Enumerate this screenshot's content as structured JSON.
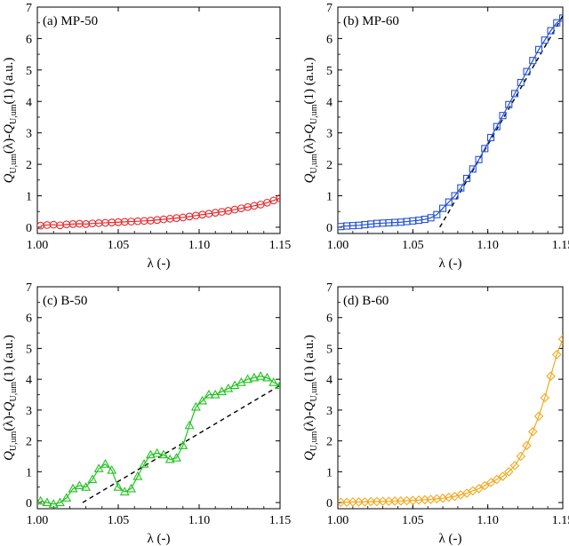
{
  "chart_data": [
    {
      "type": "scatter",
      "panel_label": "(a) MP-50",
      "xlabel": "λ (-)",
      "ylabel": {
        "q1": "Q",
        "s1": "U,um",
        "mid": "(λ)-",
        "q2": "Q",
        "s2": "U,um",
        "end": "(1) (a.u.)"
      },
      "xlim": [
        1.0,
        1.15
      ],
      "ylim": [
        -0.2,
        7
      ],
      "xticks": [
        "1.00",
        "1.05",
        "1.10",
        "1.15"
      ],
      "yticks": [
        "0",
        "1",
        "2",
        "3",
        "4",
        "5",
        "6",
        "7"
      ],
      "marker": "circle",
      "color": "#e8262a",
      "series": [
        {
          "name": "MP-50",
          "x": [
            1.002,
            1.006,
            1.01,
            1.014,
            1.018,
            1.022,
            1.026,
            1.03,
            1.034,
            1.038,
            1.042,
            1.046,
            1.05,
            1.054,
            1.058,
            1.062,
            1.066,
            1.07,
            1.074,
            1.078,
            1.082,
            1.086,
            1.09,
            1.094,
            1.098,
            1.102,
            1.106,
            1.11,
            1.114,
            1.118,
            1.122,
            1.126,
            1.13,
            1.134,
            1.138,
            1.142,
            1.146,
            1.15
          ],
          "y": [
            0.05,
            0.07,
            0.08,
            0.06,
            0.09,
            0.1,
            0.11,
            0.1,
            0.12,
            0.13,
            0.14,
            0.15,
            0.16,
            0.17,
            0.18,
            0.19,
            0.2,
            0.21,
            0.23,
            0.25,
            0.27,
            0.29,
            0.31,
            0.34,
            0.37,
            0.4,
            0.43,
            0.46,
            0.49,
            0.52,
            0.56,
            0.6,
            0.64,
            0.68,
            0.72,
            0.78,
            0.85,
            0.92
          ]
        }
      ],
      "fit_line": null
    },
    {
      "type": "scatter",
      "panel_label": "(b) MP-60",
      "xlabel": "λ (-)",
      "ylabel": {
        "q1": "Q",
        "s1": "U,um",
        "mid": "(λ)-",
        "q2": "Q",
        "s2": "U,um",
        "end": "(1) (a.u.)"
      },
      "xlim": [
        1.0,
        1.15
      ],
      "ylim": [
        -0.2,
        7
      ],
      "xticks": [
        "1.00",
        "1.05",
        "1.10",
        "1.15"
      ],
      "yticks": [
        "0",
        "1",
        "2",
        "3",
        "4",
        "5",
        "6",
        "7"
      ],
      "marker": "square",
      "color": "#2451d6",
      "series": [
        {
          "name": "MP-60",
          "x": [
            1.002,
            1.006,
            1.01,
            1.014,
            1.018,
            1.022,
            1.026,
            1.03,
            1.034,
            1.038,
            1.042,
            1.046,
            1.05,
            1.054,
            1.058,
            1.062,
            1.066,
            1.07,
            1.074,
            1.078,
            1.082,
            1.086,
            1.09,
            1.094,
            1.098,
            1.102,
            1.106,
            1.11,
            1.114,
            1.118,
            1.122,
            1.126,
            1.13,
            1.134,
            1.138,
            1.142,
            1.146,
            1.15
          ],
          "y": [
            0.02,
            0.04,
            0.05,
            0.06,
            0.08,
            0.1,
            0.12,
            0.13,
            0.14,
            0.15,
            0.16,
            0.18,
            0.2,
            0.22,
            0.25,
            0.3,
            0.4,
            0.6,
            0.8,
            1.0,
            1.25,
            1.55,
            1.85,
            2.15,
            2.5,
            2.85,
            3.2,
            3.55,
            3.9,
            4.25,
            4.6,
            4.95,
            5.3,
            5.65,
            5.95,
            6.25,
            6.5,
            6.65
          ]
        }
      ],
      "fit_line": {
        "x": [
          1.068,
          1.15
        ],
        "y": [
          0,
          6.72
        ]
      }
    },
    {
      "type": "scatter",
      "panel_label": "(c) B-50",
      "xlabel": "λ (-)",
      "ylabel": {
        "q1": "Q",
        "s1": "U,um",
        "mid": "(λ)-",
        "q2": "Q",
        "s2": "U,um",
        "end": "(1) (a.u.)"
      },
      "xlim": [
        1.0,
        1.15
      ],
      "ylim": [
        -0.2,
        7
      ],
      "xticks": [
        "1.00",
        "1.05",
        "1.10",
        "1.15"
      ],
      "yticks": [
        "0",
        "1",
        "2",
        "3",
        "4",
        "5",
        "6",
        "7"
      ],
      "marker": "triangle",
      "color": "#22c21f",
      "series": [
        {
          "name": "B-50",
          "x": [
            1.002,
            1.006,
            1.01,
            1.014,
            1.018,
            1.022,
            1.026,
            1.03,
            1.034,
            1.038,
            1.042,
            1.046,
            1.05,
            1.054,
            1.058,
            1.062,
            1.066,
            1.07,
            1.074,
            1.078,
            1.082,
            1.086,
            1.09,
            1.094,
            1.098,
            1.102,
            1.106,
            1.11,
            1.114,
            1.118,
            1.122,
            1.126,
            1.13,
            1.134,
            1.138,
            1.142,
            1.146,
            1.15
          ],
          "y": [
            0.05,
            0.0,
            -0.05,
            0.0,
            0.15,
            0.45,
            0.55,
            0.5,
            0.75,
            1.1,
            1.25,
            1.05,
            0.5,
            0.35,
            0.45,
            0.85,
            1.25,
            1.55,
            1.6,
            1.55,
            1.4,
            1.45,
            1.85,
            2.5,
            3.1,
            3.3,
            3.5,
            3.5,
            3.6,
            3.7,
            3.8,
            3.9,
            4.0,
            4.05,
            4.1,
            4.05,
            3.9,
            3.8
          ]
        }
      ],
      "fit_line": {
        "x": [
          1.028,
          1.15
        ],
        "y": [
          0,
          3.8
        ]
      }
    },
    {
      "type": "scatter",
      "panel_label": "(d) B-60",
      "xlabel": "λ (-)",
      "ylabel": {
        "q1": "Q",
        "s1": "U,um",
        "mid": "(λ)-",
        "q2": "Q",
        "s2": "U,um",
        "end": "(1) (a.u.)"
      },
      "xlim": [
        1.0,
        1.15
      ],
      "ylim": [
        -0.2,
        7
      ],
      "xticks": [
        "1.00",
        "1.05",
        "1.10",
        "1.15"
      ],
      "yticks": [
        "0",
        "1",
        "2",
        "3",
        "4",
        "5",
        "6",
        "7"
      ],
      "marker": "diamond",
      "color": "#f2a81f",
      "series": [
        {
          "name": "B-60",
          "x": [
            1.002,
            1.006,
            1.01,
            1.014,
            1.018,
            1.022,
            1.026,
            1.03,
            1.034,
            1.038,
            1.042,
            1.046,
            1.05,
            1.054,
            1.058,
            1.062,
            1.066,
            1.07,
            1.074,
            1.078,
            1.082,
            1.086,
            1.09,
            1.094,
            1.098,
            1.102,
            1.106,
            1.11,
            1.114,
            1.118,
            1.122,
            1.126,
            1.13,
            1.134,
            1.138,
            1.142,
            1.146,
            1.15
          ],
          "y": [
            0.01,
            0.01,
            0.02,
            0.02,
            0.02,
            0.03,
            0.03,
            0.04,
            0.04,
            0.05,
            0.05,
            0.06,
            0.07,
            0.08,
            0.09,
            0.1,
            0.12,
            0.14,
            0.17,
            0.2,
            0.25,
            0.3,
            0.38,
            0.45,
            0.55,
            0.65,
            0.75,
            0.85,
            1.0,
            1.2,
            1.5,
            1.85,
            2.3,
            2.8,
            3.4,
            4.1,
            4.8,
            5.3
          ]
        }
      ],
      "fit_line": null
    }
  ]
}
